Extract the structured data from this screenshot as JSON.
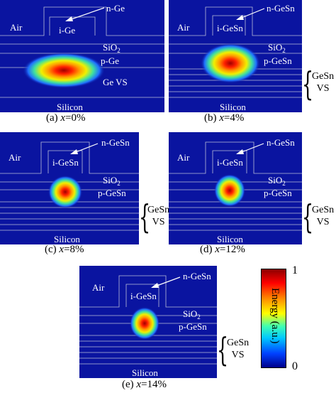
{
  "panels": [
    {
      "id": "a",
      "air": "Air",
      "top": "n-Ge",
      "mid": "i-Ge",
      "oxide": "SiO",
      "oxide_sub": "2",
      "doped": "p-Ge",
      "buffer": "Ge VS",
      "substrate": "Silicon",
      "caption_prefix": "(a) ",
      "caption_var": "x",
      "caption_val": "=0%"
    },
    {
      "id": "b",
      "air": "Air",
      "top": "n-GeSn",
      "mid": "i-GeSn",
      "oxide": "SiO",
      "oxide_sub": "2",
      "doped": "p-GeSn",
      "substrate": "Silicon",
      "caption_prefix": "(b) ",
      "caption_var": "x",
      "caption_val": "=4%"
    },
    {
      "id": "c",
      "air": "Air",
      "top": "n-GeSn",
      "mid": "i-GeSn",
      "oxide": "SiO",
      "oxide_sub": "2",
      "doped": "p-GeSn",
      "substrate": "Silicon",
      "caption_prefix": "(c) ",
      "caption_var": "x",
      "caption_val": "=8%"
    },
    {
      "id": "d",
      "air": "Air",
      "top": "n-GeSn",
      "mid": "i-GeSn",
      "oxide": "SiO",
      "oxide_sub": "2",
      "doped": "p-GeSn",
      "substrate": "Silicon",
      "caption_prefix": "(d) ",
      "caption_var": "x",
      "caption_val": "=12%"
    },
    {
      "id": "e",
      "air": "Air",
      "top": "n-GeSn",
      "mid": "i-GeSn",
      "oxide": "SiO",
      "oxide_sub": "2",
      "doped": "p-GeSn",
      "substrate": "Silicon",
      "caption_prefix": "(e) ",
      "caption_var": "x",
      "caption_val": "=14%"
    }
  ],
  "side_label": {
    "line1": "GeSn",
    "line2": "VS"
  },
  "colorbar": {
    "max": "1",
    "min": "0",
    "label": "Energy (a.u.)"
  },
  "colors": {
    "background": "#0a14a0",
    "outline": "#b8bcd8",
    "mode_peak": "#a00000"
  }
}
